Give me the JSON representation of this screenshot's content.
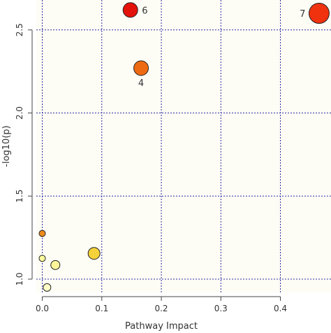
{
  "chart_data": {
    "type": "scatter",
    "title": "",
    "xlabel": "Pathway Impact",
    "ylabel": "-log10(p)",
    "xlim": [
      -0.01,
      0.485
    ],
    "ylim": [
      0.92,
      2.68
    ],
    "x_ticks": [
      0.0,
      0.1,
      0.2,
      0.3,
      0.4
    ],
    "x_tick_labels": [
      "0.0",
      "0.1",
      "0.2",
      "0.3",
      "0.4"
    ],
    "y_ticks": [
      1.0,
      1.5,
      2.0,
      2.5
    ],
    "y_tick_labels": [
      "1.0",
      "1.5",
      "2.0",
      "2.5"
    ],
    "grid": "dotted",
    "grid_color": "#2a2aa0",
    "background_color": "#fdfdf6",
    "points": [
      {
        "x": 0.148,
        "y": 2.62,
        "impact_size": 10.5,
        "color": "#e3120b",
        "label": "6"
      },
      {
        "x": 0.166,
        "y": 2.27,
        "impact_size": 10.5,
        "color": "#ee6a12",
        "label": "4"
      },
      {
        "x": 0.465,
        "y": 2.6,
        "impact_size": 14.5,
        "color": "#f0320f",
        "label": "7"
      },
      {
        "x": 0.0,
        "y": 1.275,
        "impact_size": 4.5,
        "color": "#ec8a1e",
        "label": ""
      },
      {
        "x": 0.0,
        "y": 1.125,
        "impact_size": 4.5,
        "color": "#ffff9f",
        "label": ""
      },
      {
        "x": 0.022,
        "y": 1.085,
        "impact_size": 6.5,
        "color": "#fdf59a",
        "label": ""
      },
      {
        "x": 0.087,
        "y": 1.155,
        "impact_size": 8.5,
        "color": "#f6d23a",
        "label": ""
      },
      {
        "x": 0.008,
        "y": 0.95,
        "impact_size": 5.5,
        "color": "#fffcc6",
        "label": ""
      }
    ]
  }
}
